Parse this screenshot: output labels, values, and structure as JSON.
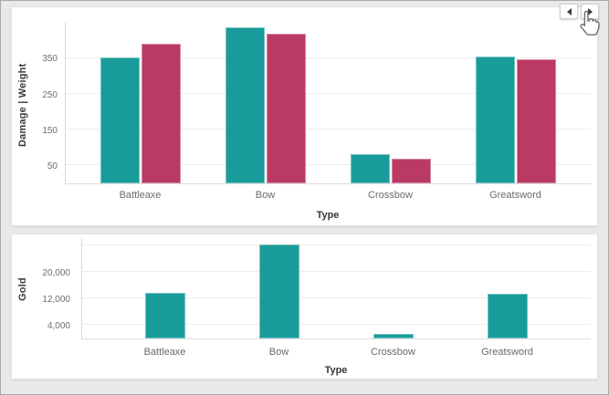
{
  "page": {
    "background": "#e9e9e9",
    "card_background": "#ffffff"
  },
  "colors": {
    "teal": "#1A9B9B",
    "crimson": "#BB3A64",
    "grid": "#ececec",
    "axis_text": "#6e6e6e",
    "title_text": "#3a3a3a"
  },
  "nav": {
    "prev_icon": "left-triangle",
    "next_icon": "right-triangle",
    "cursor_icon": "hand-pointer"
  },
  "chart_data": [
    {
      "type": "bar",
      "title": "",
      "categories": [
        "Battleaxe",
        "Bow",
        "Crossbow",
        "Greatsword"
      ],
      "series": [
        {
          "name": "Damage",
          "color": "#1A9B9B",
          "values": [
            352,
            436,
            82,
            354
          ]
        },
        {
          "name": "Weight",
          "color": "#BB3A64",
          "values": [
            389,
            418,
            69,
            346
          ]
        }
      ],
      "xlabel": "Type",
      "ylabel": "Damage  |  Weight",
      "yticks": [
        50,
        150,
        250,
        350
      ],
      "ytick_labels": [
        "50",
        "150",
        "250",
        "350"
      ],
      "ylim": [
        0,
        450
      ],
      "grid": true,
      "legend": "none"
    },
    {
      "type": "bar",
      "title": "",
      "categories": [
        "Battleaxe",
        "Bow",
        "Crossbow",
        "Greatsword"
      ],
      "series": [
        {
          "name": "Gold",
          "color": "#1A9B9B",
          "values": [
            13700,
            28100,
            1300,
            13400
          ]
        }
      ],
      "xlabel": "Type",
      "ylabel": "Gold",
      "yticks": [
        4000,
        12000,
        20000,
        28000
      ],
      "ytick_labels": [
        "4,000",
        "12,000",
        "20,000",
        ""
      ],
      "ylim": [
        0,
        30500
      ],
      "grid": true,
      "legend": "none"
    }
  ]
}
